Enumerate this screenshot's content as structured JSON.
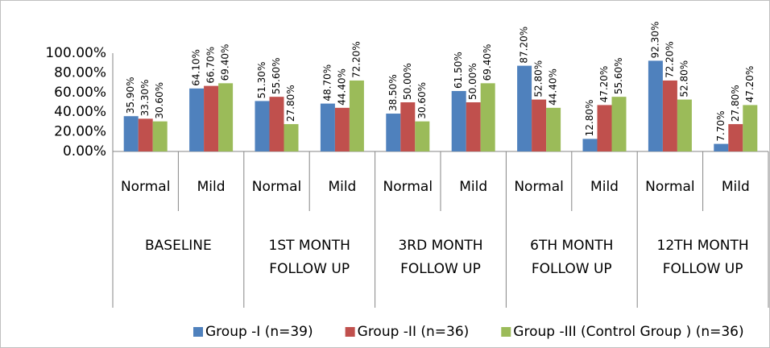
{
  "chart_data": {
    "type": "bar",
    "categories": [
      "Normal",
      "Mild",
      "Normal",
      "Mild",
      "Normal",
      "Mild",
      "Normal",
      "Mild",
      "Normal",
      "Mild"
    ],
    "groups": [
      [
        "BASELINE"
      ],
      [
        "1ST MONTH",
        "FOLLOW UP"
      ],
      [
        "3RD MONTH",
        "FOLLOW UP"
      ],
      [
        "6TH MONTH",
        "FOLLOW UP"
      ],
      [
        "12TH MONTH",
        "FOLLOW UP"
      ]
    ],
    "series": [
      {
        "name": "Group -I (n=39)",
        "color": "#4f81bd",
        "values": [
          35.9,
          64.1,
          51.3,
          48.7,
          38.5,
          61.5,
          87.2,
          12.8,
          92.3,
          7.7
        ],
        "value_labels": [
          "35.90%",
          "64.10%",
          "51.30%",
          "48.70%",
          "38.50%",
          "61.50%",
          "87.20%",
          "12.80%",
          "92.30%",
          "7.70%"
        ]
      },
      {
        "name": "Group -II (n=36)",
        "color": "#c0504d",
        "values": [
          33.3,
          66.7,
          55.6,
          44.4,
          50.0,
          50.0,
          52.8,
          47.2,
          72.2,
          27.8
        ],
        "value_labels": [
          "33.30%",
          "66.70%",
          "55.60%",
          "44.40%",
          "50.00%",
          "50.00%",
          "52.80%",
          "47.20%",
          "72.20%",
          "27.80%"
        ]
      },
      {
        "name": "Group -III (Control Group ) (n=36)",
        "color": "#9bbb59",
        "values": [
          30.6,
          69.4,
          27.8,
          72.2,
          30.6,
          69.4,
          44.4,
          55.6,
          52.8,
          47.2
        ],
        "value_labels": [
          "30.60%",
          "69.40%",
          "27.80%",
          "72.20%",
          "30.60%",
          "69.40%",
          "44.40%",
          "55.60%",
          "52.80%",
          "47.20%"
        ]
      }
    ],
    "ylim": [
      0,
      100
    ],
    "yticks": [
      {
        "value": 0,
        "label": "0.00%"
      },
      {
        "value": 20,
        "label": "20.00%"
      },
      {
        "value": 40,
        "label": "40.00%"
      },
      {
        "value": 60,
        "label": "60.00%"
      },
      {
        "value": 80,
        "label": "80.00%"
      },
      {
        "value": 100,
        "label": "100.00%"
      }
    ],
    "legend": "bottom",
    "grid": false
  }
}
